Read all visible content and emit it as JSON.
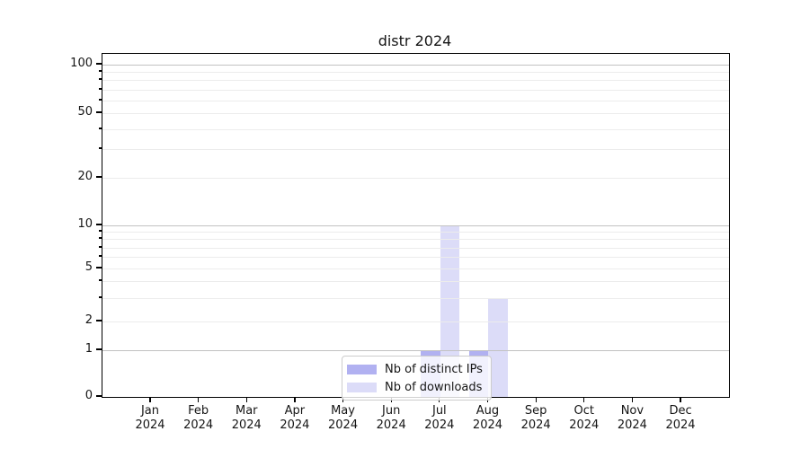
{
  "chart_data": {
    "type": "bar",
    "title": "distr 2024",
    "categories": [
      "Jan",
      "Feb",
      "Mar",
      "Apr",
      "May",
      "Jun",
      "Jul",
      "Aug",
      "Sep",
      "Oct",
      "Nov",
      "Dec"
    ],
    "category_sublabel": "2024",
    "series": [
      {
        "name": "Nb of distinct IPs",
        "color": "#b1b1f1",
        "values": [
          0,
          0,
          0,
          0,
          0,
          0,
          1,
          1,
          0,
          0,
          0,
          0
        ]
      },
      {
        "name": "Nb of downloads",
        "color": "#dcdcf8",
        "values": [
          0,
          0,
          0,
          0,
          0,
          0,
          10,
          3,
          0,
          0,
          0,
          0
        ]
      }
    ],
    "xlabel": "",
    "ylabel": "",
    "yaxis": {
      "scale": "log-like (linear near zero, asinh style)",
      "labeled_ticks": [
        0,
        1,
        2,
        5,
        10,
        20,
        50,
        100
      ],
      "minor_ticks": [
        3,
        4,
        6,
        7,
        8,
        9,
        30,
        40,
        60,
        70,
        80,
        90
      ],
      "emphasized_gridlines": [
        1,
        10,
        100
      ],
      "ylim": [
        0,
        118
      ]
    },
    "grid": true,
    "legend": {
      "position": "lower center",
      "entries": [
        "Nb of distinct IPs",
        "Nb of downloads"
      ]
    }
  },
  "colors": {
    "spine": "#000000",
    "grid_major": "#c2c2c2",
    "grid_minor": "#ececec",
    "series_ips": "#b1b1f1",
    "series_downloads": "#dcdcf8",
    "legend_border": "#cccccc"
  }
}
